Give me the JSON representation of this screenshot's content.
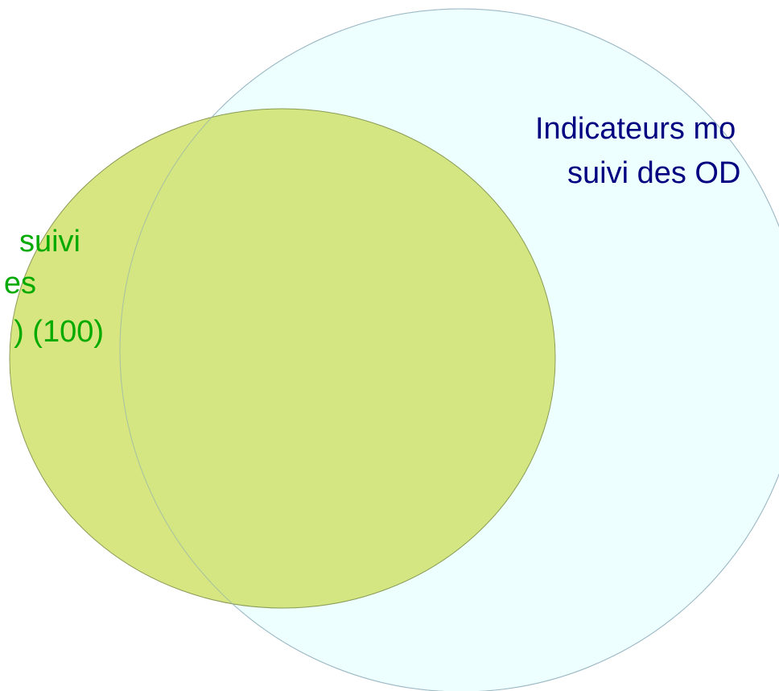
{
  "sets": [
    {
      "label_lines": [
        "Indicateurs mo",
        "suivi des OD"
      ]
    },
    {
      "label_lines": [
        "suivi",
        "es",
        ") (100)"
      ]
    }
  ]
}
